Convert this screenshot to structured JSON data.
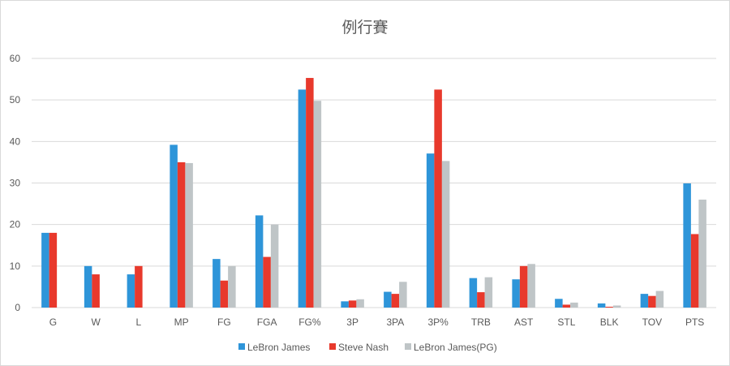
{
  "chart_data": {
    "type": "bar",
    "title": "例行賽",
    "xlabel": "",
    "ylabel": "",
    "ylim": [
      0,
      60
    ],
    "yticks": [
      0,
      10,
      20,
      30,
      40,
      50,
      60
    ],
    "grid": true,
    "legend_position": "bottom",
    "categories": [
      "G",
      "W",
      "L",
      "MP",
      "FG",
      "FGA",
      "FG%",
      "3P",
      "3PA",
      "3P%",
      "TRB",
      "AST",
      "STL",
      "BLK",
      "TOV",
      "PTS"
    ],
    "series": [
      {
        "name": "LeBron James",
        "color": "#2e95d9",
        "values": [
          18,
          10,
          8,
          39.2,
          11.7,
          22.2,
          52.5,
          1.5,
          3.8,
          37.1,
          7.1,
          6.8,
          2.1,
          1.0,
          3.3,
          29.9
        ]
      },
      {
        "name": "Steve Nash",
        "color": "#e8392c",
        "values": [
          18,
          8,
          10,
          35.0,
          6.5,
          12.2,
          55.3,
          1.7,
          3.3,
          52.5,
          3.7,
          10.0,
          0.7,
          0.2,
          2.8,
          17.7
        ]
      },
      {
        "name": "LeBron James(PG)",
        "color": "#bfc5c7",
        "values": [
          null,
          null,
          null,
          34.8,
          10.0,
          20.0,
          49.8,
          2.0,
          6.2,
          35.3,
          7.3,
          10.5,
          1.2,
          0.5,
          4.0,
          26.0
        ]
      }
    ]
  }
}
